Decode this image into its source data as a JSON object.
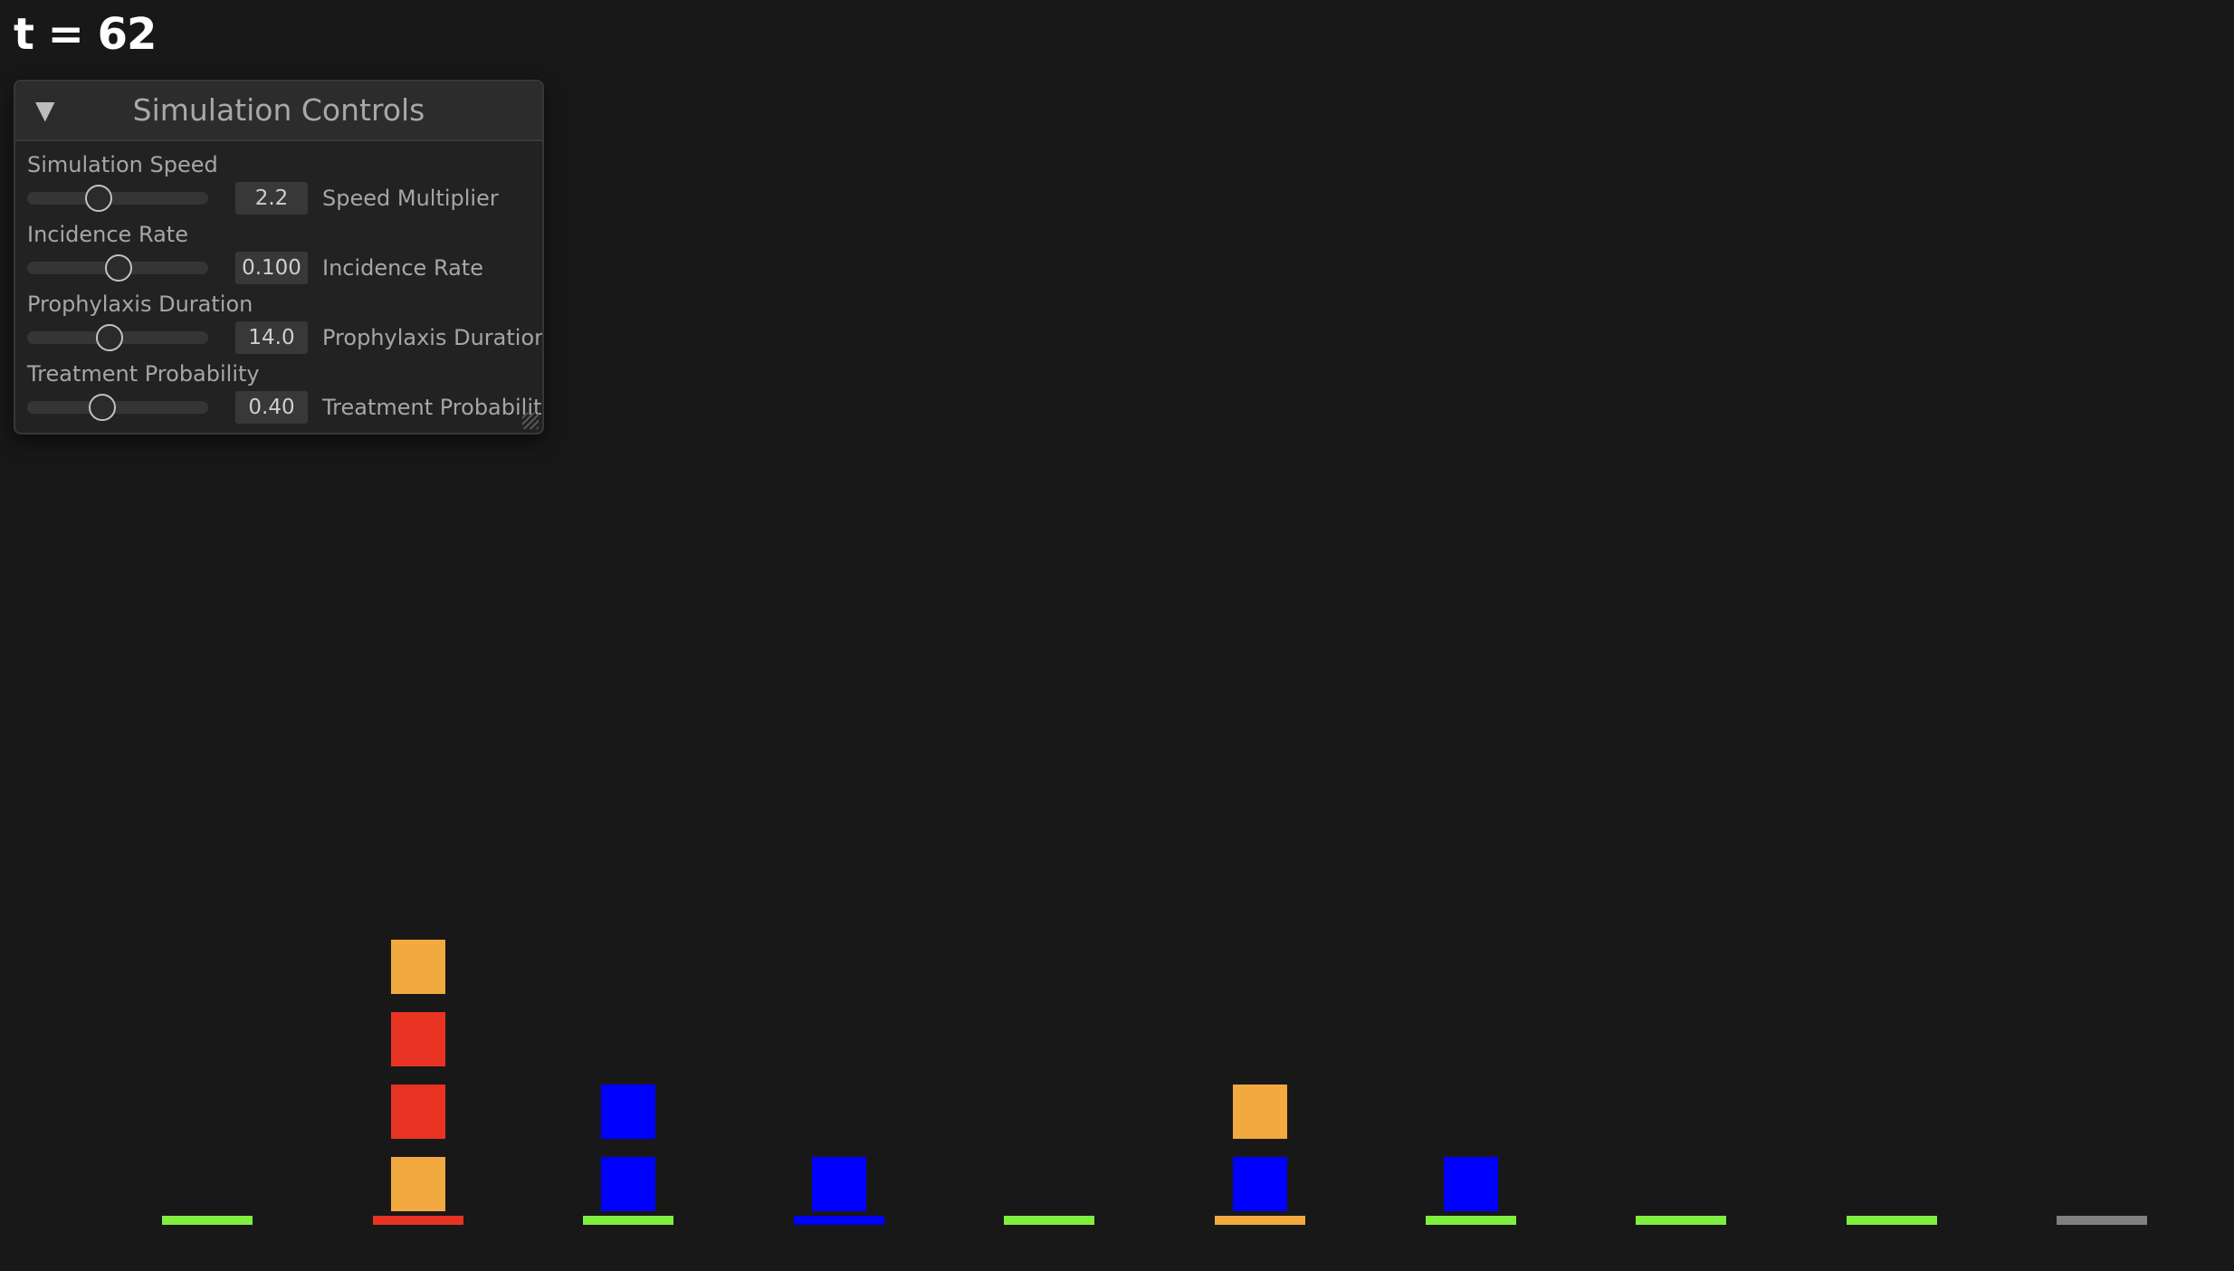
{
  "time_label": "t = 62",
  "panel": {
    "title": "Simulation Controls",
    "collapse_icon": "▼",
    "controls": [
      {
        "label": "Simulation Speed",
        "value": "2.2",
        "value_label": "Speed Multiplier",
        "slider_fraction": 0.39
      },
      {
        "label": "Incidence Rate",
        "value": "0.100",
        "value_label": "Incidence Rate",
        "slider_fraction": 0.5
      },
      {
        "label": "Prophylaxis Duration",
        "value": "14.0",
        "value_label": "Prophylaxis Duration",
        "slider_fraction": 0.45
      },
      {
        "label": "Treatment Probability",
        "value": "0.40",
        "value_label": "Treatment Probability",
        "slider_fraction": 0.41
      }
    ]
  },
  "colors": {
    "background": "#181818",
    "green": "#7fee3f",
    "red": "#e83323",
    "orange": "#f2a93f",
    "blue": "#0000ff",
    "gray": "#808080"
  },
  "wards": [
    {
      "bed_color": "green",
      "patients": []
    },
    {
      "bed_color": "red",
      "patients": [
        "orange",
        "red",
        "red",
        "orange"
      ]
    },
    {
      "bed_color": "green",
      "patients": [
        "blue",
        "blue"
      ]
    },
    {
      "bed_color": "blue",
      "patients": [
        "blue"
      ]
    },
    {
      "bed_color": "green",
      "patients": []
    },
    {
      "bed_color": "orange",
      "patients": [
        "orange",
        "blue"
      ]
    },
    {
      "bed_color": "green",
      "patients": [
        "blue"
      ]
    },
    {
      "bed_color": "green",
      "patients": []
    },
    {
      "bed_color": "green",
      "patients": []
    },
    {
      "bed_color": "gray",
      "patients": []
    }
  ]
}
